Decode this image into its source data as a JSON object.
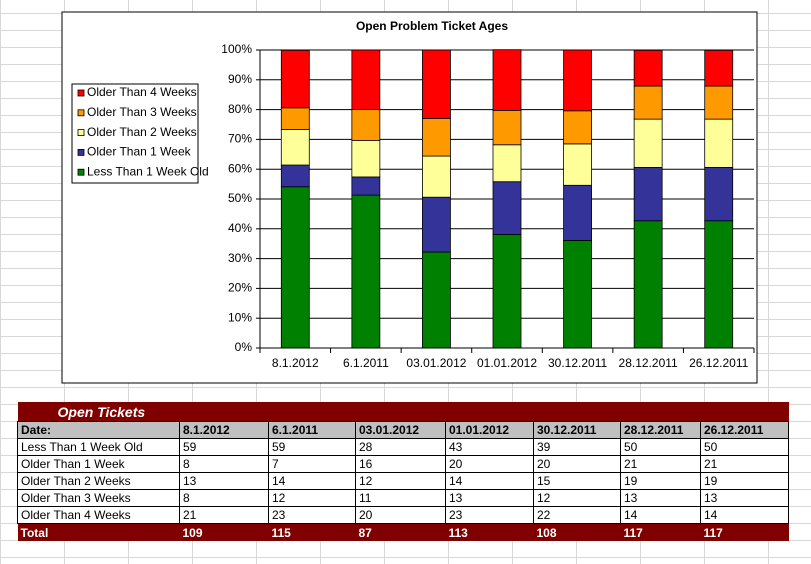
{
  "chart_data": {
    "type": "bar",
    "stacked": true,
    "title": "Open Problem Ticket Ages",
    "categories": [
      "8.1.2012",
      "6.1.2011",
      "03.01.2012",
      "01.01.2012",
      "30.12.2011",
      "28.12.2011",
      "26.12.2011"
    ],
    "series": [
      {
        "name": "Less Than 1 Week Old",
        "color": "#008000",
        "values": [
          54.1,
          51.3,
          32.2,
          38.1,
          36.1,
          42.7,
          42.7
        ]
      },
      {
        "name": "Older Than 1 Week",
        "color": "#333399",
        "values": [
          7.3,
          6.1,
          18.4,
          17.7,
          18.5,
          17.9,
          17.9
        ]
      },
      {
        "name": "Older Than 2 Weeks",
        "color": "#ffff99",
        "values": [
          11.9,
          12.2,
          13.8,
          12.4,
          13.9,
          16.2,
          16.2
        ]
      },
      {
        "name": "Older Than 3 Weeks",
        "color": "#ff9900",
        "values": [
          7.3,
          10.4,
          12.6,
          11.5,
          11.1,
          11.1,
          11.1
        ]
      },
      {
        "name": "Older Than 4 Weeks",
        "color": "#ff0000",
        "values": [
          19.3,
          20.0,
          23.0,
          20.4,
          20.4,
          12.0,
          12.0
        ]
      }
    ],
    "ylim": [
      0,
      100
    ],
    "yticks": [
      {
        "value": 0,
        "label": "0%"
      },
      {
        "value": 10,
        "label": "10%"
      },
      {
        "value": 20,
        "label": "20%"
      },
      {
        "value": 30,
        "label": "30%"
      },
      {
        "value": 40,
        "label": "40%"
      },
      {
        "value": 50,
        "label": "50%"
      },
      {
        "value": 60,
        "label": "60%"
      },
      {
        "value": 70,
        "label": "70%"
      },
      {
        "value": 80,
        "label": "80%"
      },
      {
        "value": 90,
        "label": "90%"
      },
      {
        "value": 100,
        "label": "100%"
      }
    ],
    "grid": true,
    "legend": "left"
  },
  "table": {
    "title": "Open Tickets",
    "header": [
      "Date:",
      "8.1.2012",
      "6.1.2011",
      "03.01.2012",
      "01.01.2012",
      "30.12.2011",
      "28.12.2011",
      "26.12.2011"
    ],
    "rows": [
      [
        "Less Than 1 Week Old",
        "59",
        "59",
        "28",
        "43",
        "39",
        "50",
        "50"
      ],
      [
        "Older Than 1 Week",
        "8",
        "7",
        "16",
        "20",
        "20",
        "21",
        "21"
      ],
      [
        "Older Than 2 Weeks",
        "13",
        "14",
        "12",
        "14",
        "15",
        "19",
        "19"
      ],
      [
        "Older Than 3 Weeks",
        "8",
        "12",
        "11",
        "13",
        "12",
        "13",
        "13"
      ],
      [
        "Older Than 4 Weeks",
        "21",
        "23",
        "20",
        "23",
        "22",
        "14",
        "14"
      ]
    ],
    "total": [
      "Total",
      "109",
      "115",
      "87",
      "113",
      "108",
      "117",
      "117"
    ]
  }
}
